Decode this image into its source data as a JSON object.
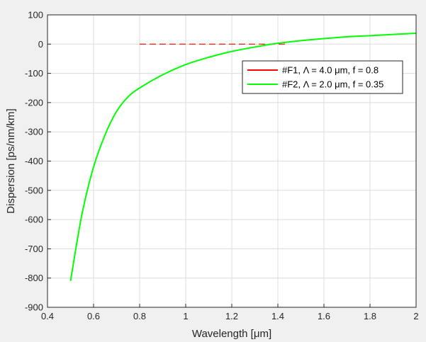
{
  "chart_data": {
    "type": "line",
    "xlabel": "Wavelength [μm]",
    "ylabel": "Dispersion [ps/nm/km]",
    "xlim": [
      0.4,
      2.0
    ],
    "ylim": [
      -900,
      100
    ],
    "xticks": [
      0.4,
      0.6,
      0.8,
      1.0,
      1.2,
      1.4,
      1.6,
      1.8,
      2.0
    ],
    "xtick_labels": [
      "0.4",
      "0.6",
      "0.8",
      "1",
      "1.2",
      "1.4",
      "1.6",
      "1.8",
      "2"
    ],
    "yticks": [
      100,
      0,
      -100,
      -200,
      -300,
      -400,
      -500,
      -600,
      -700,
      -800,
      -900
    ],
    "ytick_labels": [
      "100",
      "0",
      "-100",
      "-200",
      "-300",
      "-400",
      "-500",
      "-600",
      "-700",
      "-800",
      "-900"
    ],
    "grid": true,
    "legend_position": "upper-right",
    "series": [
      {
        "name": "#F1, Λ = 4.0 μm, f = 0.8",
        "color": "#ff0000",
        "style": "dashed",
        "x": [
          0.8,
          1.0,
          1.2,
          1.4,
          1.44
        ],
        "y": [
          0,
          0,
          0,
          0,
          0
        ]
      },
      {
        "name": "#F2, Λ = 2.0 μm, f = 0.35",
        "color": "#00ff00",
        "style": "solid",
        "x": [
          0.5,
          0.55,
          0.6,
          0.65,
          0.7,
          0.75,
          0.8,
          0.9,
          1.0,
          1.1,
          1.2,
          1.3,
          1.35,
          1.4,
          1.5,
          1.6,
          1.7,
          1.8,
          1.9,
          2.0
        ],
        "y": [
          -810,
          -580,
          -420,
          -310,
          -230,
          -180,
          -150,
          -105,
          -70,
          -45,
          -25,
          -10,
          -3,
          3,
          12,
          19,
          25,
          29,
          33,
          37
        ]
      }
    ]
  }
}
